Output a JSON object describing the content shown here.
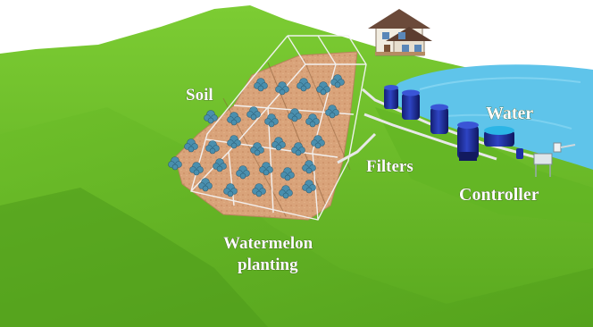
{
  "labels": {
    "soil": "Soil",
    "water": "Water",
    "filters": "Filters",
    "controller": "Controller",
    "watermelon_line1": "Watermelon",
    "watermelon_line2": "planting"
  },
  "colors": {
    "grass": "#6cbe28",
    "grass_dark": "#4f9a1c",
    "soil": "#d9a37a",
    "water": "#5fc4ea",
    "tank": "#1f2f9a",
    "plant": "#4a8fae"
  },
  "icons": [
    "house-icon",
    "filter-tank-icon",
    "controller-icon",
    "plant-icon"
  ]
}
